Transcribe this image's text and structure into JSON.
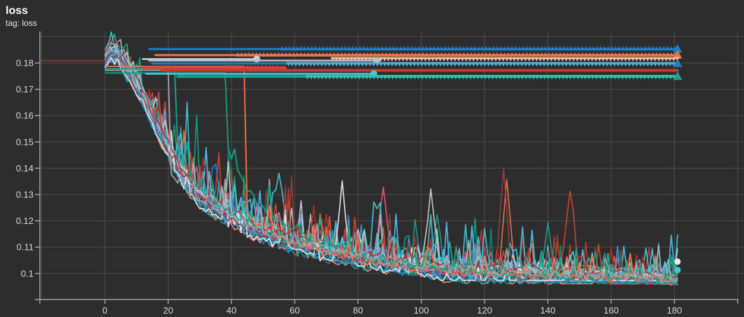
{
  "card": {
    "title": "loss",
    "subtitle": "tag: loss"
  },
  "chart_data": {
    "type": "line",
    "title": "loss",
    "subtitle": "tag: loss",
    "xlabel": "",
    "ylabel": "",
    "x_range": [
      -20.5,
      200
    ],
    "y_range": [
      0.09,
      0.19
    ],
    "x_ticks": [
      0,
      20,
      40,
      60,
      80,
      100,
      120,
      140,
      160,
      180
    ],
    "y_ticks": [
      0.18,
      0.17,
      0.16,
      0.15,
      0.14,
      0.13,
      0.12,
      0.11,
      0.1
    ],
    "y_tick_labels": [
      "0.18",
      "0.17",
      "0.16",
      "0.15",
      "0.14",
      "0.13",
      "0.12",
      "0.11",
      "0.1"
    ],
    "x_tick_labels": [
      "0",
      "20",
      "40",
      "60",
      "80",
      "100",
      "120",
      "140",
      "160",
      "180"
    ],
    "grid": true,
    "legend": "none",
    "background": "#2d2d2d",
    "grid_color": "#4a4a4a",
    "axis_color": "#b4b4b4",
    "text_color": "#d6d6d6",
    "reference_line": {
      "value": 0.1809,
      "color": "#7c3a2f",
      "from_step": -20.5,
      "to_step": 0
    },
    "plateau_runs": [
      {
        "name": "plateau-blue-0.1853",
        "color": "#1e7fc2",
        "value": 0.1853,
        "start": 14,
        "end": 181,
        "width": 3,
        "markers": {
          "from": 56,
          "dir": "up",
          "color": "#1e7fc2"
        },
        "end_marker": "triangle"
      },
      {
        "name": "plateau-orange-0.1830",
        "color": "#f4714c",
        "value": 0.183,
        "start": 16,
        "end": 181,
        "width": 3,
        "markers": {
          "from": 42,
          "dir": "up",
          "color": "#f4714c"
        },
        "end_marker": "triangle"
      },
      {
        "name": "plateau-cream-0.1817",
        "color": "#f2c1a0",
        "value": 0.1817,
        "start": 72,
        "end": 181,
        "width": 1.6,
        "markers": {
          "from": 72,
          "dir": "down",
          "color": "#f2c1a0"
        },
        "end_marker": "none"
      },
      {
        "name": "plateau-gray-0.1815",
        "color": "#c9ced3",
        "value": 0.1815,
        "start": 12,
        "end": 48,
        "width": 2.6,
        "markers": null,
        "end_marker": "dot"
      },
      {
        "name": "plateau-gray-0.1809",
        "color": "#b9bfc4",
        "value": 0.1809,
        "start": 14,
        "end": 86,
        "width": 2.6,
        "markers": null,
        "end_marker": "dot"
      },
      {
        "name": "plateau-blue-0.1798",
        "color": "#1e7fc2",
        "value": 0.1798,
        "start": 15,
        "end": 181,
        "width": 3,
        "markers": {
          "from": 58,
          "dir": "down",
          "color": "#5ab4de"
        },
        "end_marker": "triangle"
      },
      {
        "name": "plateau-pink-0.1781",
        "color": "#ee4f88",
        "value": 0.1781,
        "start": 38,
        "end": 55,
        "width": 2.4,
        "markers": {
          "from": 38,
          "dir": "up",
          "color": "#ee4f88"
        },
        "end_marker": "none"
      },
      {
        "name": "plateau-red-0.1782",
        "color": "#d84336",
        "value": 0.1782,
        "start": 12,
        "end": 57,
        "width": 4,
        "markers": null,
        "end_marker": "none"
      },
      {
        "name": "plateau-red-0.1772",
        "color": "#c8392b",
        "value": 0.1772,
        "start": 18,
        "end": 181,
        "width": 4,
        "markers": null,
        "end_marker": "none"
      },
      {
        "name": "plateau-cyan-0.1759",
        "color": "#45c5dc",
        "value": 0.1759,
        "start": 13,
        "end": 85,
        "width": 2.6,
        "markers": null,
        "end_marker": "dot"
      },
      {
        "name": "plateau-teal-0.1749",
        "color": "#18a38d",
        "value": 0.1749,
        "start": 23,
        "end": 181,
        "width": 4,
        "markers": {
          "from": 64,
          "dir": "down",
          "color": "#3fc4b2"
        },
        "end_marker": "triangle"
      }
    ],
    "drop_runs": [
      {
        "name": "drop-teal-step22",
        "color": "#18a38d",
        "keypoints": [
          [
            0,
            0.1778
          ],
          [
            22,
            0.1778
          ],
          [
            23,
            0.15
          ],
          [
            25,
            0.14
          ],
          [
            30,
            0.131
          ],
          [
            40,
            0.1225
          ],
          [
            55,
            0.114
          ],
          [
            75,
            0.1075
          ],
          [
            100,
            0.1025
          ],
          [
            140,
            0.099
          ],
          [
            181,
            0.097
          ]
        ],
        "noise_from": 23,
        "seed": 301
      },
      {
        "name": "drop-teal-step38",
        "color": "#14a085",
        "keypoints": [
          [
            0,
            0.1762
          ],
          [
            38,
            0.1762
          ],
          [
            39,
            0.146
          ],
          [
            42,
            0.138
          ],
          [
            48,
            0.127
          ],
          [
            55,
            0.12
          ],
          [
            65,
            0.113
          ],
          [
            80,
            0.107
          ],
          [
            100,
            0.102
          ],
          [
            130,
            0.0995
          ],
          [
            160,
            0.098
          ],
          [
            181,
            0.0975
          ]
        ],
        "noise_from": 39,
        "seed": 302
      },
      {
        "name": "drop-orange-step44",
        "color": "#f4714c",
        "keypoints": [
          [
            0,
            0.1787
          ],
          [
            44,
            0.1787
          ],
          [
            45,
            0.1223
          ],
          [
            50,
            0.116
          ],
          [
            60,
            0.111
          ],
          [
            75,
            0.106
          ],
          [
            95,
            0.102
          ],
          [
            120,
            0.0995
          ],
          [
            150,
            0.0985
          ],
          [
            181,
            0.0975
          ]
        ],
        "noise_from": 45,
        "seed": 303
      },
      {
        "name": "drop-gray-step20",
        "color": "#9aa0a5",
        "keypoints": [
          [
            0,
            0.1772
          ],
          [
            20,
            0.1772
          ],
          [
            21,
            0.138
          ],
          [
            24,
            0.132
          ],
          [
            32,
            0.1265
          ],
          [
            45,
            0.1185
          ],
          [
            60,
            0.1115
          ],
          [
            85,
            0.105
          ],
          [
            120,
            0.1005
          ],
          [
            160,
            0.0985
          ],
          [
            181,
            0.0975
          ]
        ],
        "noise_from": 21,
        "seed": 304
      }
    ],
    "bundle": {
      "description": "~24 noisy training-loss curves decaying from ~0.185 to ~0.097 with upward spikes",
      "steps": [
        0,
        181
      ],
      "median_keypoints": [
        [
          0,
          0.181
        ],
        [
          2,
          0.184
        ],
        [
          4,
          0.183
        ],
        [
          6,
          0.179
        ],
        [
          8,
          0.1755
        ],
        [
          10,
          0.171
        ],
        [
          12,
          0.167
        ],
        [
          14,
          0.162
        ],
        [
          16,
          0.157
        ],
        [
          18,
          0.152
        ],
        [
          20,
          0.147
        ],
        [
          22,
          0.142
        ],
        [
          24,
          0.138
        ],
        [
          26,
          0.1345
        ],
        [
          28,
          0.1315
        ],
        [
          30,
          0.129
        ],
        [
          34,
          0.1255
        ],
        [
          38,
          0.1225
        ],
        [
          42,
          0.12
        ],
        [
          46,
          0.1175
        ],
        [
          50,
          0.1155
        ],
        [
          55,
          0.1135
        ],
        [
          60,
          0.1115
        ],
        [
          65,
          0.11
        ],
        [
          70,
          0.1085
        ],
        [
          75,
          0.107
        ],
        [
          80,
          0.1058
        ],
        [
          85,
          0.1048
        ],
        [
          90,
          0.104
        ],
        [
          95,
          0.1032
        ],
        [
          100,
          0.1025
        ],
        [
          110,
          0.1005
        ],
        [
          120,
          0.0998
        ],
        [
          130,
          0.0993
        ],
        [
          140,
          0.0989
        ],
        [
          150,
          0.0985
        ],
        [
          160,
          0.0981
        ],
        [
          170,
          0.0977
        ],
        [
          181,
          0.0968
        ]
      ],
      "floor_range": [
        0.0955,
        0.105
      ],
      "colors": [
        "#f4714c",
        "#e8593a",
        "#d84336",
        "#c0392b",
        "#ee4f88",
        "#f06292",
        "#e91e63",
        "#ff8a73",
        "#18a38d",
        "#0d8b76",
        "#2bb5a0",
        "#14a085",
        "#45c5dc",
        "#4dd0e1",
        "#55b6e8",
        "#4fc3f7",
        "#1e7fc2",
        "#3a9ad9",
        "#5c9fd6",
        "#c8cdd2",
        "#aeb6bb",
        "#e8eaed",
        "#8d4438",
        "#a93226"
      ],
      "feature_spikes": [
        {
          "run": 0,
          "step": 127,
          "height": 0.036
        },
        {
          "run": 22,
          "step": 126,
          "height": 0.041
        },
        {
          "run": 19,
          "step": 103,
          "height": 0.027
        },
        {
          "run": 21,
          "step": 75,
          "height": 0.031
        },
        {
          "run": 2,
          "step": 147,
          "height": 0.03
        },
        {
          "run": 8,
          "step": 140,
          "height": 0.024
        },
        {
          "run": 4,
          "step": 88,
          "height": 0.027
        },
        {
          "run": 12,
          "step": 55,
          "height": 0.022
        },
        {
          "run": 16,
          "step": 35,
          "height": 0.02
        }
      ],
      "end_dots": [
        {
          "color": "#e8eaed",
          "step": 181,
          "value": 0.1045
        },
        {
          "color": "#45c5dc",
          "step": 181,
          "value": 0.1013
        }
      ]
    }
  }
}
